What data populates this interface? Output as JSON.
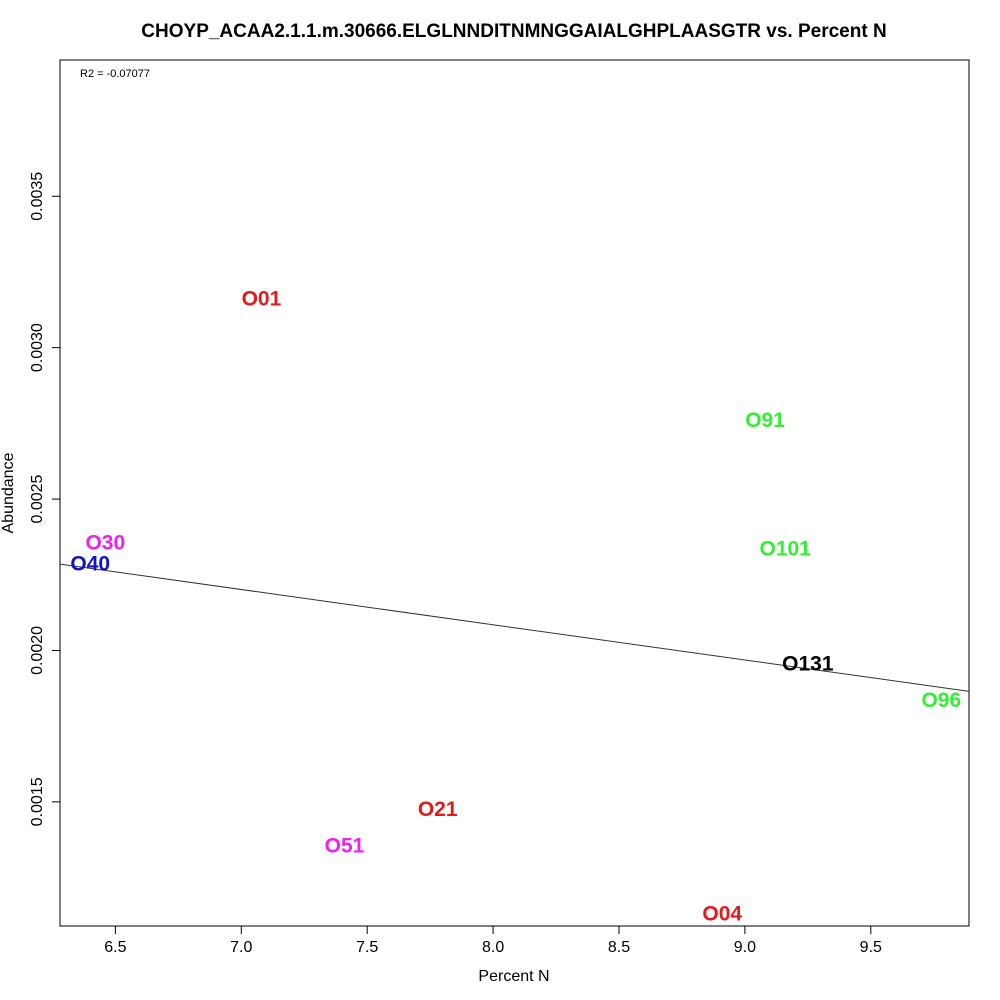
{
  "chart_data": {
    "type": "scatter",
    "title": "CHOYP_ACAA2.1.1.m.30666.ELGLNNDITNMNGGAIALGHPLAASGTR vs. Percent N",
    "xlabel": "Percent N",
    "ylabel": "Abundance",
    "annotation": "R2 = -0.07077",
    "xlim": [
      6.28,
      9.89
    ],
    "ylim": [
      0.00109,
      0.00395
    ],
    "x_ticks": [
      6.5,
      7.0,
      7.5,
      8.0,
      8.5,
      9.0,
      9.5
    ],
    "x_tick_labels": [
      "6.5",
      "7.0",
      "7.5",
      "8.0",
      "8.5",
      "9.0",
      "9.5"
    ],
    "y_ticks": [
      0.0015,
      0.002,
      0.0025,
      0.003,
      0.0035
    ],
    "y_tick_labels": [
      "0.0015",
      "0.0020",
      "0.0025",
      "0.0030",
      "0.0035"
    ],
    "grid": false,
    "points": [
      {
        "label": "O01",
        "x": 7.08,
        "y": 0.00316,
        "color": "#e31a1c"
      },
      {
        "label": "O91",
        "x": 9.08,
        "y": 0.00276,
        "color": "#33ee33"
      },
      {
        "label": "O30",
        "x": 6.46,
        "y": 0.002355,
        "color": "#ee22ee"
      },
      {
        "label": "O40",
        "x": 6.4,
        "y": 0.002285,
        "color": "#1111cc"
      },
      {
        "label": "O101",
        "x": 9.16,
        "y": 0.002335,
        "color": "#33ee33"
      },
      {
        "label": "O131",
        "x": 9.25,
        "y": 0.001955,
        "color": "#000000"
      },
      {
        "label": "O96",
        "x": 9.78,
        "y": 0.001835,
        "color": "#33ee33"
      },
      {
        "label": "O21",
        "x": 7.78,
        "y": 0.001475,
        "color": "#e31a1c"
      },
      {
        "label": "O51",
        "x": 7.41,
        "y": 0.001355,
        "color": "#ee22ee"
      },
      {
        "label": "O04",
        "x": 8.91,
        "y": 0.00113,
        "color": "#e31a1c"
      }
    ],
    "fit_line": {
      "x": [
        6.28,
        9.89
      ],
      "y": [
        0.002285,
        0.001865
      ]
    }
  }
}
